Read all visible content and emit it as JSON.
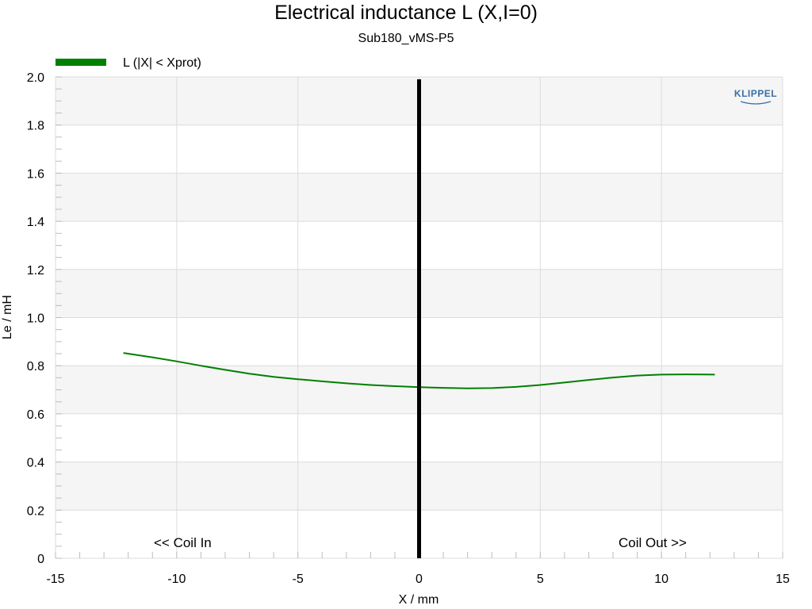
{
  "chart_data": {
    "type": "line",
    "title": "Electrical inductance L (X,I=0)",
    "subtitle": "Sub180_vMS-P5",
    "xlabel": "X / mm",
    "ylabel": "Le / mH",
    "xlim": [
      -15,
      15
    ],
    "ylim": [
      0,
      2.0
    ],
    "x_ticks": [
      "-15",
      "-10",
      "-5",
      "0",
      "5",
      "10",
      "15"
    ],
    "y_ticks": [
      "0",
      "0.2",
      "0.4",
      "0.6",
      "0.8",
      "1.0",
      "1.2",
      "1.4",
      "1.6",
      "1.8",
      "2.0"
    ],
    "grid": true,
    "legend_position": "top-left",
    "series": [
      {
        "name": "L (|X| < Xprot)",
        "color": "#008000",
        "x": [
          -12.2,
          -11,
          -10,
          -9,
          -8,
          -7,
          -6,
          -5,
          -4,
          -3,
          -2,
          -1,
          0,
          1,
          2,
          3,
          4,
          5,
          6,
          7,
          8,
          9,
          10,
          11,
          12.2
        ],
        "y": [
          0.853,
          0.835,
          0.818,
          0.8,
          0.783,
          0.767,
          0.754,
          0.744,
          0.735,
          0.727,
          0.72,
          0.715,
          0.711,
          0.708,
          0.706,
          0.707,
          0.712,
          0.72,
          0.73,
          0.741,
          0.751,
          0.759,
          0.763,
          0.764,
          0.763
        ]
      }
    ],
    "reference_line": {
      "x": 0,
      "color": "#000000"
    },
    "annotations": [
      "<< Coil In",
      "Coil Out >>"
    ]
  },
  "logo_text": "KLIPPEL"
}
